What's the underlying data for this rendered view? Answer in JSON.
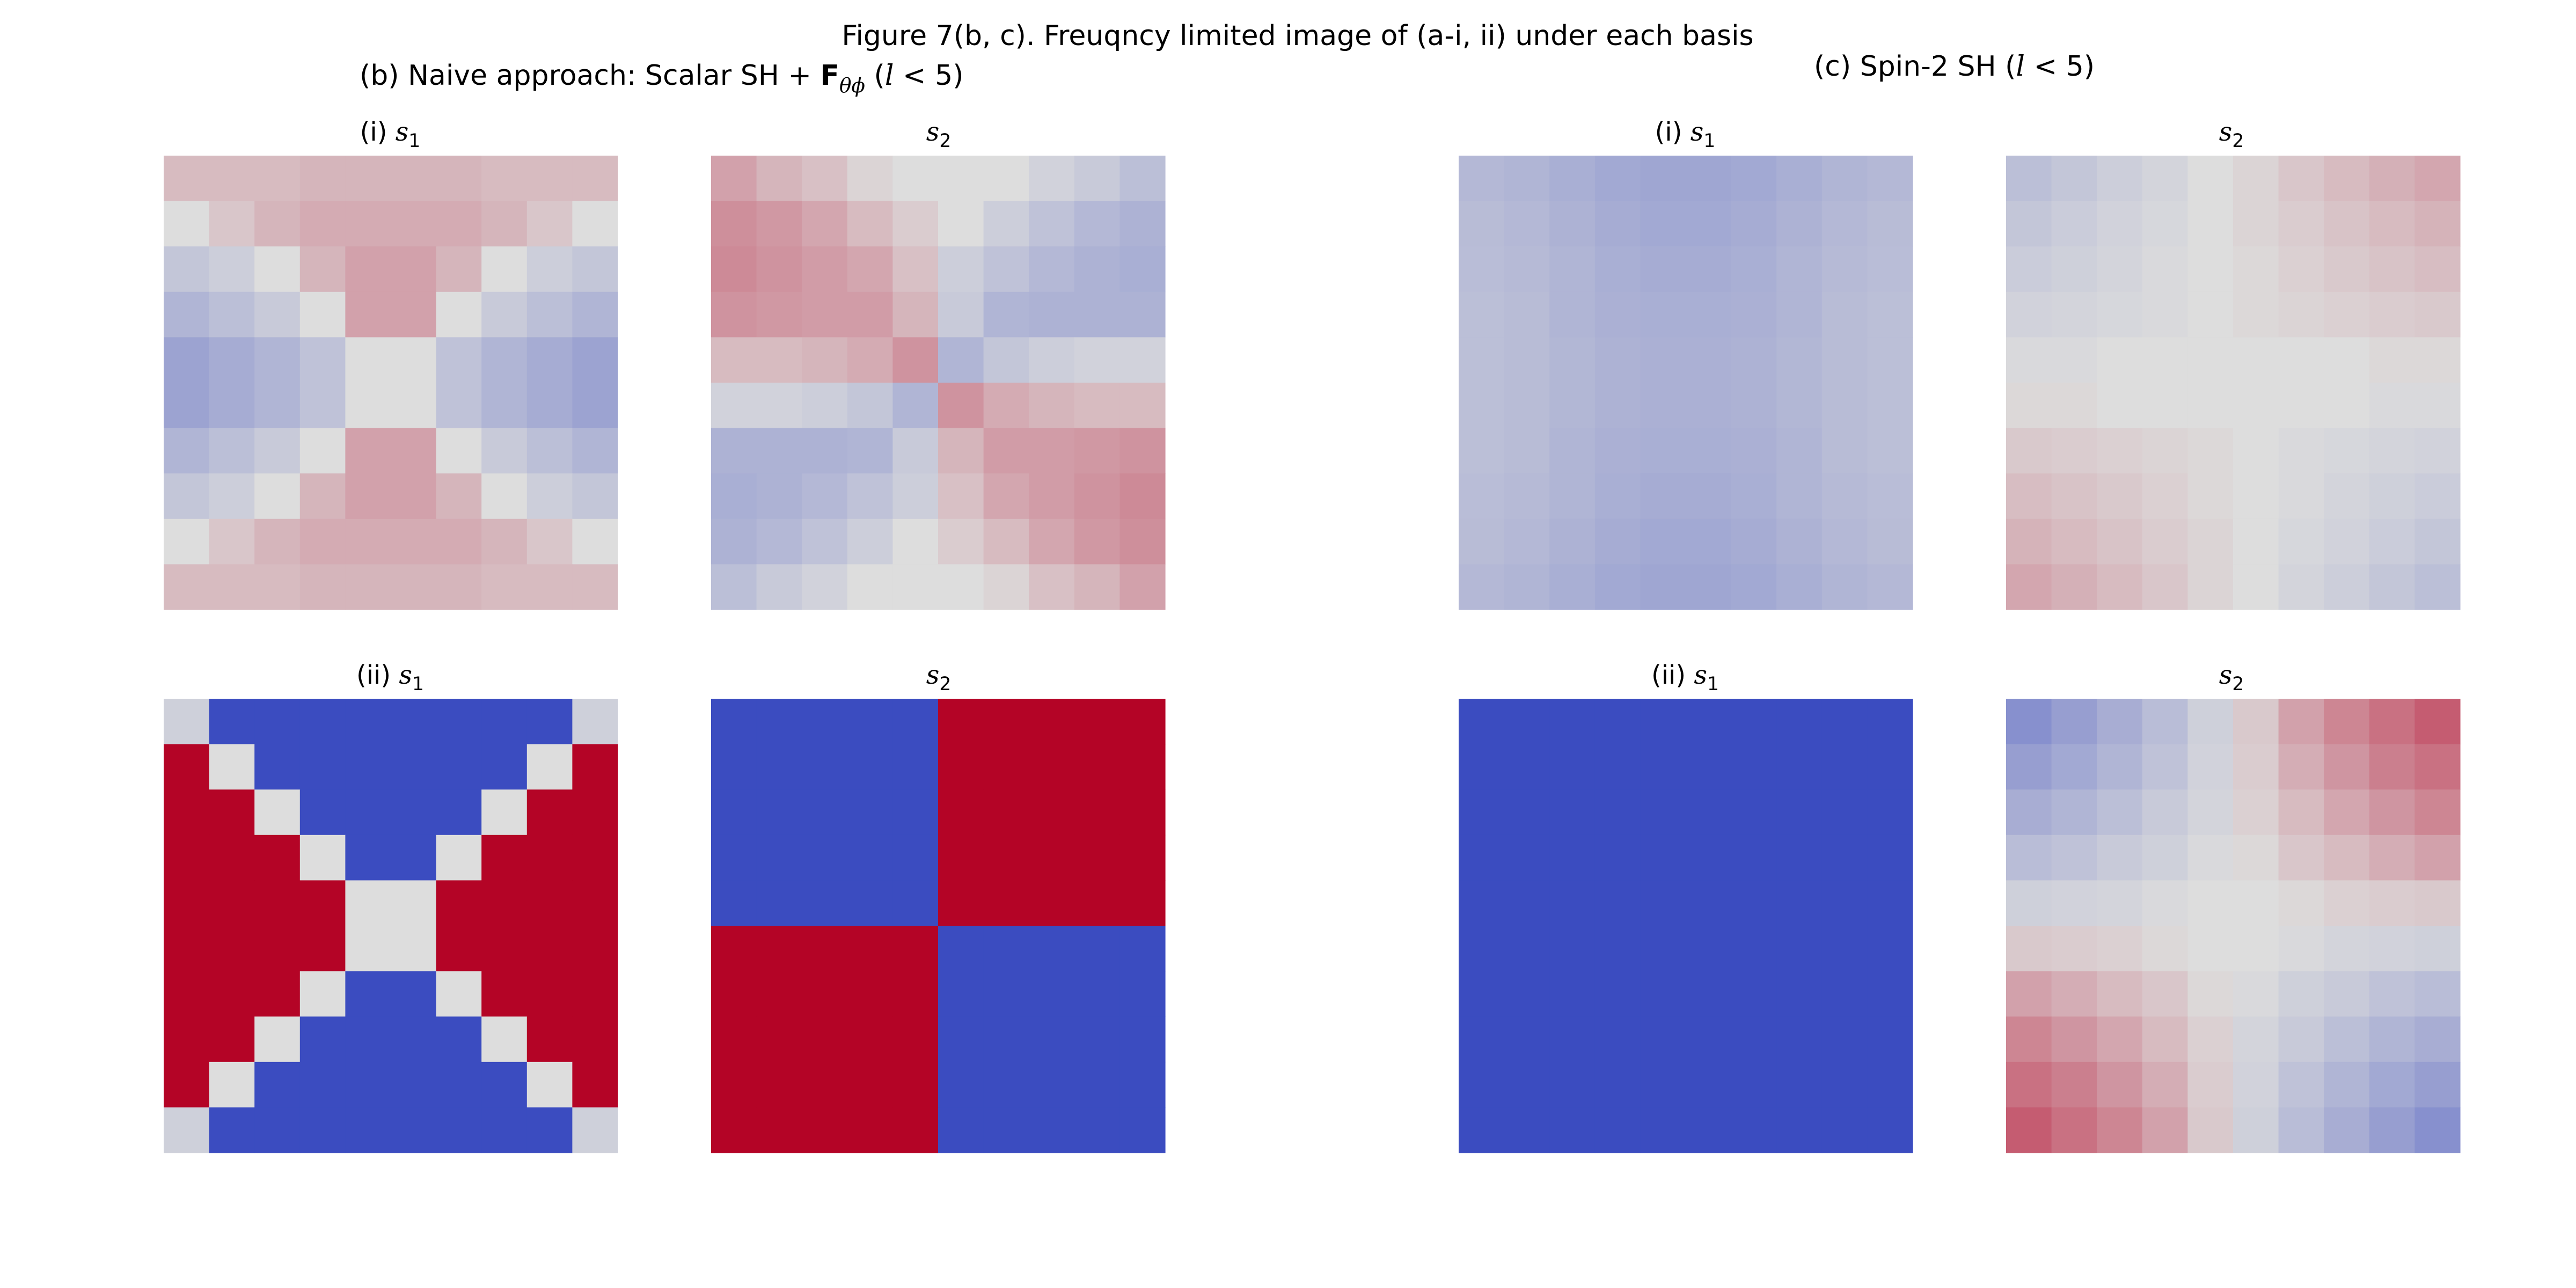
{
  "figure": {
    "title": "Figure 7(b, c). Freuqncy limited image of (a-i, ii) under each basis"
  },
  "groups": {
    "b": {
      "prefix": "(b) Naive approach: Scalar SH + ",
      "symbol": "F",
      "subscript": "θϕ",
      "cond_open": " (",
      "cond_var": "l",
      "cond_rest": " < 5)"
    },
    "c": {
      "prefix": "(c) Spin-2 SH (",
      "cond_var": "l",
      "cond_rest": " < 5)"
    }
  },
  "chart_data": [
    {
      "id": "b_i_s1",
      "type": "heatmap",
      "title": {
        "prefix": "(i) ",
        "var": "s",
        "sub": "1"
      },
      "colormap": "coolwarm",
      "value_range": [
        -1,
        1
      ],
      "rows": 10,
      "cols": 10,
      "values": [
        [
          0.1,
          0.1,
          0.1,
          0.12,
          0.12,
          0.12,
          0.12,
          0.1,
          0.1,
          0.1
        ],
        [
          0.0,
          0.06,
          0.12,
          0.16,
          0.16,
          0.16,
          0.16,
          0.12,
          0.06,
          0.0
        ],
        [
          -0.1,
          -0.06,
          0.0,
          0.12,
          0.2,
          0.2,
          0.12,
          0.0,
          -0.06,
          -0.1
        ],
        [
          -0.2,
          -0.14,
          -0.08,
          0.0,
          0.2,
          0.2,
          0.0,
          -0.08,
          -0.14,
          -0.2
        ],
        [
          -0.32,
          -0.26,
          -0.2,
          -0.12,
          0.0,
          0.0,
          -0.12,
          -0.2,
          -0.26,
          -0.32
        ],
        [
          -0.32,
          -0.26,
          -0.2,
          -0.12,
          0.0,
          0.0,
          -0.12,
          -0.2,
          -0.26,
          -0.32
        ],
        [
          -0.2,
          -0.14,
          -0.08,
          0.0,
          0.2,
          0.2,
          0.0,
          -0.08,
          -0.14,
          -0.2
        ],
        [
          -0.1,
          -0.06,
          0.0,
          0.12,
          0.2,
          0.2,
          0.12,
          0.0,
          -0.06,
          -0.1
        ],
        [
          0.0,
          0.06,
          0.12,
          0.16,
          0.16,
          0.16,
          0.16,
          0.12,
          0.06,
          0.0
        ],
        [
          0.1,
          0.1,
          0.1,
          0.12,
          0.12,
          0.12,
          0.12,
          0.1,
          0.1,
          0.1
        ]
      ]
    },
    {
      "id": "b_i_s2",
      "type": "heatmap",
      "title": {
        "prefix": "",
        "var": "s",
        "sub": "2"
      },
      "colormap": "coolwarm",
      "value_range": [
        -1,
        1
      ],
      "rows": 10,
      "cols": 10,
      "values": [
        [
          0.2,
          0.12,
          0.08,
          0.02,
          0.0,
          0.0,
          0.0,
          -0.04,
          -0.08,
          -0.14
        ],
        [
          0.28,
          0.24,
          0.18,
          0.1,
          0.04,
          0.0,
          -0.06,
          -0.12,
          -0.18,
          -0.22
        ],
        [
          0.3,
          0.26,
          0.22,
          0.18,
          0.08,
          -0.06,
          -0.12,
          -0.18,
          -0.22,
          -0.24
        ],
        [
          0.26,
          0.24,
          0.22,
          0.22,
          0.12,
          -0.08,
          -0.2,
          -0.22,
          -0.22,
          -0.22
        ],
        [
          0.1,
          0.1,
          0.12,
          0.16,
          0.26,
          -0.2,
          -0.1,
          -0.06,
          -0.04,
          -0.04
        ],
        [
          -0.04,
          -0.04,
          -0.06,
          -0.1,
          -0.2,
          0.26,
          0.16,
          0.12,
          0.1,
          0.1
        ],
        [
          -0.22,
          -0.22,
          -0.22,
          -0.2,
          -0.08,
          0.12,
          0.22,
          0.22,
          0.24,
          0.26
        ],
        [
          -0.24,
          -0.22,
          -0.18,
          -0.12,
          -0.06,
          0.08,
          0.18,
          0.22,
          0.26,
          0.3
        ],
        [
          -0.22,
          -0.18,
          -0.12,
          -0.06,
          0.0,
          0.04,
          0.1,
          0.18,
          0.24,
          0.28
        ],
        [
          -0.14,
          -0.08,
          -0.04,
          0.0,
          0.0,
          0.0,
          0.02,
          0.08,
          0.12,
          0.2
        ]
      ]
    },
    {
      "id": "c_i_s1",
      "type": "heatmap",
      "title": {
        "prefix": "(i) ",
        "var": "s",
        "sub": "1"
      },
      "colormap": "coolwarm",
      "value_range": [
        -1,
        1
      ],
      "rows": 10,
      "cols": 10,
      "values": [
        [
          -0.18,
          -0.2,
          -0.24,
          -0.28,
          -0.3,
          -0.3,
          -0.28,
          -0.24,
          -0.2,
          -0.18
        ],
        [
          -0.16,
          -0.18,
          -0.22,
          -0.26,
          -0.28,
          -0.28,
          -0.26,
          -0.22,
          -0.18,
          -0.16
        ],
        [
          -0.15,
          -0.17,
          -0.2,
          -0.24,
          -0.26,
          -0.26,
          -0.24,
          -0.2,
          -0.17,
          -0.15
        ],
        [
          -0.14,
          -0.16,
          -0.2,
          -0.23,
          -0.24,
          -0.24,
          -0.23,
          -0.2,
          -0.16,
          -0.14
        ],
        [
          -0.14,
          -0.16,
          -0.19,
          -0.22,
          -0.23,
          -0.23,
          -0.22,
          -0.19,
          -0.16,
          -0.14
        ],
        [
          -0.14,
          -0.16,
          -0.19,
          -0.22,
          -0.23,
          -0.23,
          -0.22,
          -0.19,
          -0.16,
          -0.14
        ],
        [
          -0.14,
          -0.16,
          -0.2,
          -0.23,
          -0.24,
          -0.24,
          -0.23,
          -0.2,
          -0.16,
          -0.14
        ],
        [
          -0.15,
          -0.17,
          -0.2,
          -0.24,
          -0.26,
          -0.26,
          -0.24,
          -0.2,
          -0.17,
          -0.15
        ],
        [
          -0.16,
          -0.18,
          -0.22,
          -0.26,
          -0.28,
          -0.28,
          -0.26,
          -0.22,
          -0.18,
          -0.16
        ],
        [
          -0.18,
          -0.2,
          -0.24,
          -0.28,
          -0.3,
          -0.3,
          -0.28,
          -0.24,
          -0.2,
          -0.18
        ]
      ]
    },
    {
      "id": "c_i_s2",
      "type": "heatmap",
      "title": {
        "prefix": "",
        "var": "s",
        "sub": "2"
      },
      "colormap": "coolwarm",
      "value_range": [
        -1,
        1
      ],
      "rows": 10,
      "cols": 10,
      "values": [
        [
          -0.14,
          -0.1,
          -0.06,
          -0.03,
          0.0,
          0.02,
          0.06,
          0.1,
          0.14,
          0.18
        ],
        [
          -0.1,
          -0.07,
          -0.04,
          -0.02,
          0.0,
          0.02,
          0.04,
          0.07,
          0.1,
          0.13
        ],
        [
          -0.07,
          -0.05,
          -0.03,
          -0.01,
          0.0,
          0.01,
          0.03,
          0.05,
          0.07,
          0.09
        ],
        [
          -0.04,
          -0.03,
          -0.02,
          -0.01,
          0.0,
          0.01,
          0.02,
          0.03,
          0.04,
          0.05
        ],
        [
          -0.01,
          -0.01,
          0.0,
          0.0,
          0.0,
          0.0,
          0.0,
          0.0,
          0.01,
          0.01
        ],
        [
          0.01,
          0.01,
          0.0,
          0.0,
          0.0,
          0.0,
          0.0,
          0.0,
          -0.01,
          -0.01
        ],
        [
          0.05,
          0.04,
          0.03,
          0.02,
          0.01,
          0.0,
          -0.01,
          -0.02,
          -0.03,
          -0.04
        ],
        [
          0.09,
          0.07,
          0.05,
          0.03,
          0.01,
          0.0,
          -0.01,
          -0.03,
          -0.05,
          -0.07
        ],
        [
          0.13,
          0.1,
          0.07,
          0.04,
          0.02,
          0.0,
          -0.02,
          -0.04,
          -0.07,
          -0.1
        ],
        [
          0.18,
          0.14,
          0.1,
          0.06,
          0.02,
          0.0,
          -0.03,
          -0.06,
          -0.1,
          -0.14
        ]
      ]
    },
    {
      "id": "b_ii_s1",
      "type": "heatmap",
      "title": {
        "prefix": "(ii) ",
        "var": "s",
        "sub": "1"
      },
      "colormap": "coolwarm",
      "value_range": [
        -1,
        1
      ],
      "rows": 10,
      "cols": 10,
      "values": [
        [
          -0.05,
          -1,
          -1,
          -1,
          -1,
          -1,
          -1,
          -1,
          -1,
          -0.05
        ],
        [
          1,
          0,
          -1,
          -1,
          -1,
          -1,
          -1,
          -1,
          0,
          1
        ],
        [
          1,
          1,
          0,
          -1,
          -1,
          -1,
          -1,
          0,
          1,
          1
        ],
        [
          1,
          1,
          1,
          0,
          -1,
          -1,
          0,
          1,
          1,
          1
        ],
        [
          1,
          1,
          1,
          1,
          0,
          0,
          1,
          1,
          1,
          1
        ],
        [
          1,
          1,
          1,
          1,
          0,
          0,
          1,
          1,
          1,
          1
        ],
        [
          1,
          1,
          1,
          0,
          -1,
          -1,
          0,
          1,
          1,
          1
        ],
        [
          1,
          1,
          0,
          -1,
          -1,
          -1,
          -1,
          0,
          1,
          1
        ],
        [
          1,
          0,
          -1,
          -1,
          -1,
          -1,
          -1,
          -1,
          0,
          1
        ],
        [
          -0.05,
          -1,
          -1,
          -1,
          -1,
          -1,
          -1,
          -1,
          -1,
          -0.05
        ]
      ]
    },
    {
      "id": "b_ii_s2",
      "type": "heatmap",
      "title": {
        "prefix": "",
        "var": "s",
        "sub": "2"
      },
      "colormap": "coolwarm",
      "value_range": [
        -1,
        1
      ],
      "rows": 10,
      "cols": 10,
      "values": [
        [
          -1,
          -1,
          -1,
          -1,
          -1,
          1,
          1,
          1,
          1,
          1
        ],
        [
          -1,
          -1,
          -1,
          -1,
          -1,
          1,
          1,
          1,
          1,
          1
        ],
        [
          -1,
          -1,
          -1,
          -1,
          -1,
          1,
          1,
          1,
          1,
          1
        ],
        [
          -1,
          -1,
          -1,
          -1,
          -1,
          1,
          1,
          1,
          1,
          1
        ],
        [
          -1,
          -1,
          -1,
          -1,
          -1,
          1,
          1,
          1,
          1,
          1
        ],
        [
          1,
          1,
          1,
          1,
          1,
          -1,
          -1,
          -1,
          -1,
          -1
        ],
        [
          1,
          1,
          1,
          1,
          1,
          -1,
          -1,
          -1,
          -1,
          -1
        ],
        [
          1,
          1,
          1,
          1,
          1,
          -1,
          -1,
          -1,
          -1,
          -1
        ],
        [
          1,
          1,
          1,
          1,
          1,
          -1,
          -1,
          -1,
          -1,
          -1
        ],
        [
          1,
          1,
          1,
          1,
          1,
          -1,
          -1,
          -1,
          -1,
          -1
        ]
      ]
    },
    {
      "id": "c_ii_s1",
      "type": "heatmap",
      "title": {
        "prefix": "(ii) ",
        "var": "s",
        "sub": "1"
      },
      "colormap": "coolwarm",
      "value_range": [
        -1,
        1
      ],
      "rows": 10,
      "cols": 10,
      "values": [
        [
          -1,
          -1,
          -1,
          -1,
          -1,
          -1,
          -1,
          -1,
          -1,
          -1
        ],
        [
          -1,
          -1,
          -1,
          -1,
          -1,
          -1,
          -1,
          -1,
          -1,
          -1
        ],
        [
          -1,
          -1,
          -1,
          -1,
          -1,
          -1,
          -1,
          -1,
          -1,
          -1
        ],
        [
          -1,
          -1,
          -1,
          -1,
          -1,
          -1,
          -1,
          -1,
          -1,
          -1
        ],
        [
          -1,
          -1,
          -1,
          -1,
          -1,
          -1,
          -1,
          -1,
          -1,
          -1
        ],
        [
          -1,
          -1,
          -1,
          -1,
          -1,
          -1,
          -1,
          -1,
          -1,
          -1
        ],
        [
          -1,
          -1,
          -1,
          -1,
          -1,
          -1,
          -1,
          -1,
          -1,
          -1
        ],
        [
          -1,
          -1,
          -1,
          -1,
          -1,
          -1,
          -1,
          -1,
          -1,
          -1
        ],
        [
          -1,
          -1,
          -1,
          -1,
          -1,
          -1,
          -1,
          -1,
          -1,
          -1
        ],
        [
          -1,
          -1,
          -1,
          -1,
          -1,
          -1,
          -1,
          -1,
          -1,
          -1
        ]
      ]
    },
    {
      "id": "c_ii_s2",
      "type": "heatmap",
      "title": {
        "prefix": "",
        "var": "s",
        "sub": "2"
      },
      "colormap": "coolwarm",
      "value_range": [
        -1,
        1
      ],
      "rows": 10,
      "cols": 10,
      "values": [
        [
          -0.45,
          -0.35,
          -0.25,
          -0.15,
          -0.05,
          0.05,
          0.2,
          0.32,
          0.42,
          0.52
        ],
        [
          -0.35,
          -0.28,
          -0.2,
          -0.12,
          -0.04,
          0.04,
          0.15,
          0.25,
          0.35,
          0.42
        ],
        [
          -0.25,
          -0.2,
          -0.14,
          -0.08,
          -0.03,
          0.03,
          0.1,
          0.18,
          0.25,
          0.32
        ],
        [
          -0.15,
          -0.12,
          -0.08,
          -0.05,
          -0.01,
          0.01,
          0.06,
          0.1,
          0.15,
          0.2
        ],
        [
          -0.05,
          -0.04,
          -0.03,
          -0.01,
          0.0,
          0.0,
          0.01,
          0.03,
          0.04,
          0.05
        ],
        [
          0.05,
          0.04,
          0.03,
          0.01,
          0.0,
          0.0,
          -0.01,
          -0.03,
          -0.04,
          -0.05
        ],
        [
          0.2,
          0.15,
          0.1,
          0.06,
          0.01,
          -0.01,
          -0.05,
          -0.08,
          -0.12,
          -0.15
        ],
        [
          0.32,
          0.25,
          0.18,
          0.1,
          0.03,
          -0.03,
          -0.08,
          -0.14,
          -0.2,
          -0.25
        ],
        [
          0.42,
          0.35,
          0.25,
          0.15,
          0.04,
          -0.04,
          -0.12,
          -0.2,
          -0.28,
          -0.35
        ],
        [
          0.52,
          0.42,
          0.32,
          0.2,
          0.05,
          -0.05,
          -0.15,
          -0.25,
          -0.35,
          -0.45
        ]
      ]
    }
  ]
}
